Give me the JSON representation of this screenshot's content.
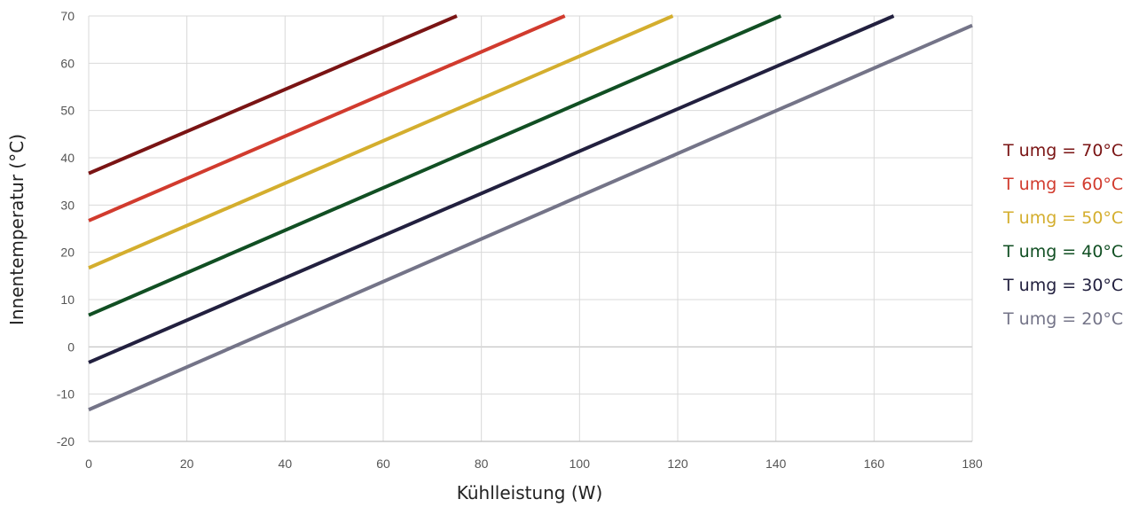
{
  "chart_data": {
    "type": "line",
    "title": "",
    "xlabel": "Kühlleistung (W)",
    "ylabel": "Innentemperatur (°C)",
    "xlim": [
      0,
      180
    ],
    "ylim": [
      -20,
      70
    ],
    "xticks": [
      0,
      20,
      40,
      60,
      80,
      100,
      120,
      140,
      160,
      180
    ],
    "yticks": [
      -20,
      -10,
      0,
      10,
      20,
      30,
      40,
      50,
      60,
      70
    ],
    "grid": true,
    "legend_position": "right",
    "series": [
      {
        "name": "T umg = 70°C",
        "color": "#7a1414",
        "x": [
          0,
          75
        ],
        "y": [
          36.7,
          70
        ]
      },
      {
        "name": "T umg = 60°C",
        "color": "#d13b2e",
        "x": [
          0,
          97
        ],
        "y": [
          26.7,
          70
        ]
      },
      {
        "name": "T umg = 50°C",
        "color": "#d4ae2e",
        "x": [
          0,
          119
        ],
        "y": [
          16.7,
          70
        ]
      },
      {
        "name": "T umg = 40°C",
        "color": "#114f23",
        "x": [
          0,
          141
        ],
        "y": [
          6.7,
          70
        ]
      },
      {
        "name": "T umg = 30°C",
        "color": "#22203f",
        "x": [
          0,
          164
        ],
        "y": [
          -3.3,
          70
        ]
      },
      {
        "name": "T umg = 20°C",
        "color": "#747488",
        "x": [
          0,
          180
        ],
        "y": [
          -13.3,
          68
        ]
      }
    ]
  }
}
